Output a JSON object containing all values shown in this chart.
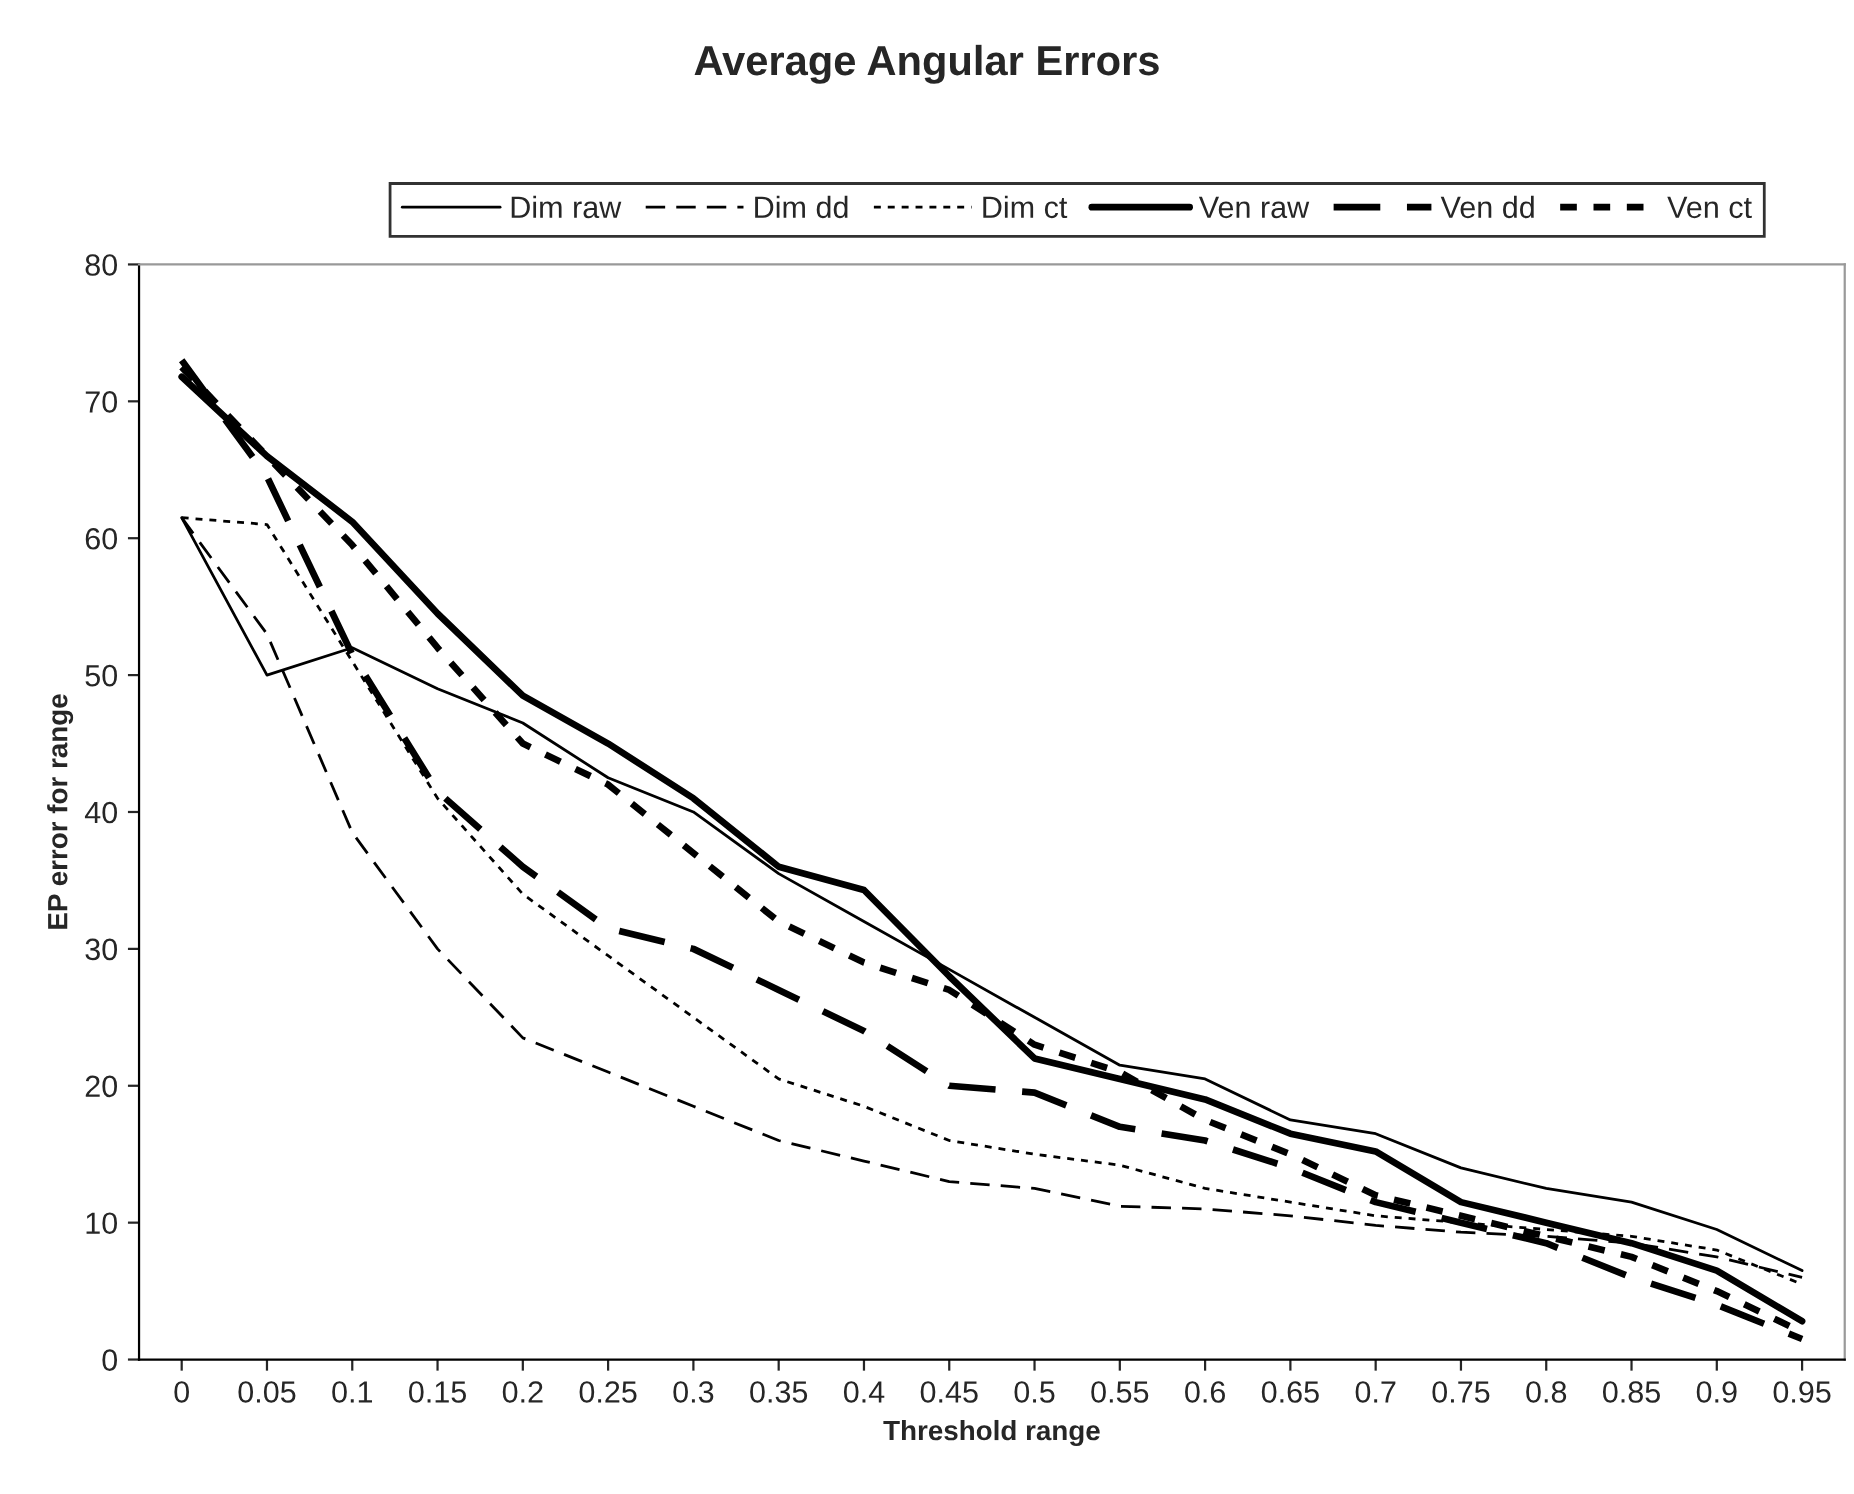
{
  "chart_data": {
    "type": "line",
    "title": "Average Angular Errors",
    "xlabel": "Threshold range",
    "ylabel": "EP error for range",
    "categories": [
      "0",
      "0.05",
      "0.1",
      "0.15",
      "0.2",
      "0.25",
      "0.3",
      "0.35",
      "0.4",
      "0.45",
      "0.5",
      "0.55",
      "0.6",
      "0.65",
      "0.7",
      "0.75",
      "0.8",
      "0.85",
      "0.9",
      "0.95"
    ],
    "series": [
      {
        "name": "Dim raw",
        "color": "#000000",
        "line_style": "solid",
        "values": [
          61.5,
          50,
          52,
          49,
          46.5,
          42.5,
          40,
          35.5,
          32,
          28.5,
          25,
          21.5,
          20.5,
          17.5,
          16.5,
          14,
          12.5,
          11.5,
          9.5,
          6.5
        ]
      },
      {
        "name": "Dim dd",
        "color": "#000000",
        "line_style": "dashed",
        "values": [
          61.5,
          53,
          38.5,
          30,
          23.5,
          21,
          18.5,
          16,
          14.5,
          13,
          12.5,
          11.2,
          11,
          10.5,
          9.8,
          9.3,
          9,
          8.5,
          7.5,
          6
        ]
      },
      {
        "name": "Dim ct",
        "color": "#000000",
        "line_style": "dotted",
        "values": [
          61.5,
          61,
          51,
          41,
          34,
          29.5,
          25,
          20.5,
          18.5,
          16,
          15,
          14.2,
          12.5,
          11.5,
          10.5,
          10,
          9.5,
          9,
          8,
          5.5
        ]
      },
      {
        "name": "Ven raw",
        "color": "#000000",
        "line_style": "solid",
        "values": [
          71.8,
          66,
          61.2,
          54.5,
          48.5,
          45,
          41,
          36,
          34.3,
          28,
          22,
          20.5,
          19,
          16.5,
          15.2,
          11.5,
          10,
          8.5,
          6.5,
          2.8
        ]
      },
      {
        "name": "Ven dd",
        "color": "#000000",
        "line_style": "dashed",
        "values": [
          73,
          64.5,
          51.5,
          41.5,
          36,
          31.5,
          30,
          27,
          24,
          20,
          19.5,
          17,
          16,
          14,
          11.5,
          10,
          8.5,
          6,
          4,
          1.5
        ]
      },
      {
        "name": "Ven ct",
        "color": "#000000",
        "line_style": "dotted",
        "values": [
          72.5,
          66,
          59.5,
          52,
          45,
          42,
          37,
          32,
          29,
          27,
          23,
          21,
          17.5,
          15,
          12,
          10.5,
          9,
          7.5,
          5,
          2
        ]
      }
    ],
    "ylim": [
      0,
      80
    ],
    "yticks": [
      0,
      10,
      20,
      30,
      40,
      50,
      60,
      70,
      80
    ],
    "grid": false,
    "legend": "top",
    "marker": "none"
  }
}
